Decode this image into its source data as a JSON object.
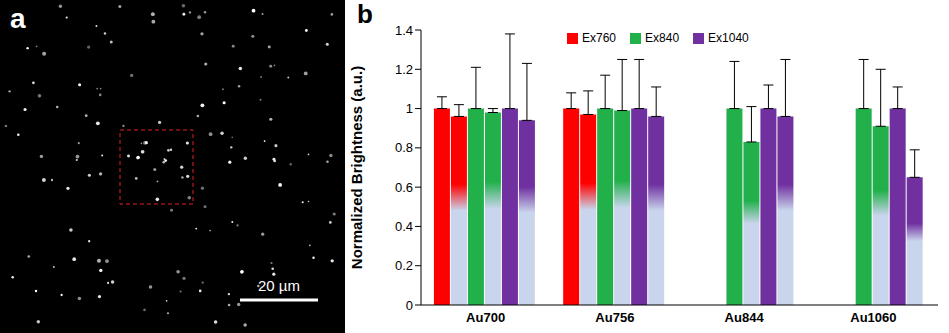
{
  "image": {
    "label": "a",
    "scale_bar": "20 µm"
  },
  "chart_data": {
    "label": "b",
    "type": "bar",
    "y_label": "Normalized Brightness (a.u.)",
    "categories": [
      "Au700",
      "Au756",
      "Au844",
      "Au1060"
    ],
    "ylim": [
      0,
      1.4
    ],
    "yticks": [
      0,
      0.2,
      0.4,
      0.6,
      0.8,
      1,
      1.2,
      1.4
    ],
    "grid": false,
    "legend": "top",
    "series": [
      {
        "name": "Ex760",
        "color": "#ff0000",
        "values": [
          1,
          1,
          null,
          null
        ],
        "errors": [
          0.06,
          0.08,
          null,
          null
        ]
      },
      {
        "name": "Ex760",
        "color": "#ff0000",
        "values": [
          0.96,
          0.97,
          null,
          null
        ],
        "errors": [
          0.06,
          0.12,
          null,
          null
        ]
      },
      {
        "name": "Ex840",
        "color": "#22b04b",
        "values": [
          1,
          1,
          1,
          1
        ],
        "errors": [
          0.21,
          0.17,
          0.24,
          0.25
        ]
      },
      {
        "name": "Ex840",
        "color": "#22b04b",
        "values": [
          0.98,
          0.99,
          0.83,
          0.91
        ],
        "errors": [
          0.02,
          0.26,
          0.18,
          0.29
        ]
      },
      {
        "name": "Ex1040",
        "color": "#7030a0",
        "values": [
          1,
          1,
          1,
          1
        ],
        "errors": [
          0.38,
          0.25,
          0.12,
          0.11
        ]
      },
      {
        "name": "Ex1040",
        "color": "#7030a0",
        "values": [
          0.94,
          0.96,
          0.96,
          0.65
        ],
        "errors": [
          0.29,
          0.15,
          0.29,
          0.14
        ]
      }
    ]
  }
}
